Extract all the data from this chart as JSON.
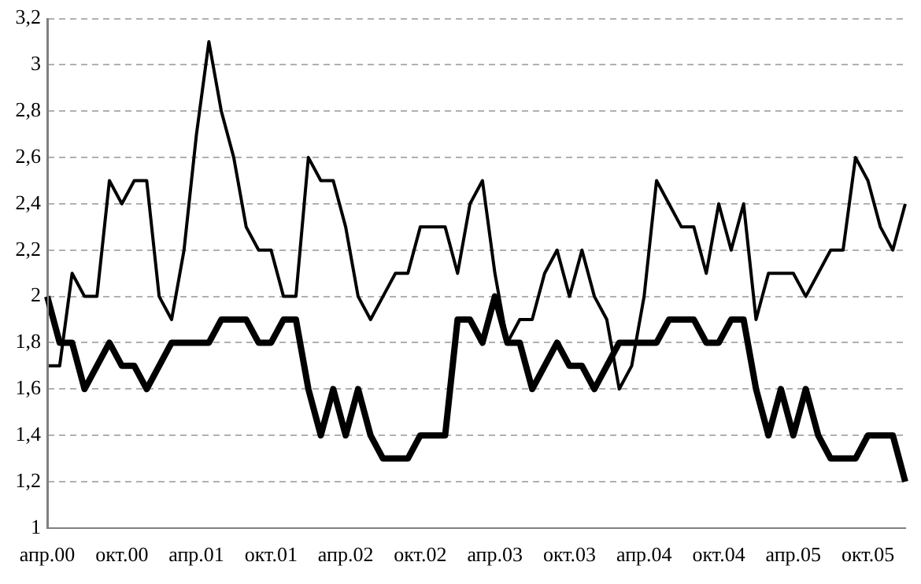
{
  "chart_data": {
    "type": "line",
    "categories": [
      "апр.00",
      null,
      null,
      null,
      null,
      null,
      "окт.00",
      null,
      null,
      null,
      null,
      null,
      "апр.01",
      null,
      null,
      null,
      null,
      null,
      "окт.01",
      null,
      null,
      null,
      null,
      null,
      "апр.02",
      null,
      null,
      null,
      null,
      null,
      "окт.02",
      null,
      null,
      null,
      null,
      null,
      "апр.03",
      null,
      null,
      null,
      null,
      null,
      "окт.03",
      null,
      null,
      null,
      null,
      null,
      "апр.04",
      null,
      null,
      null,
      null,
      null,
      "окт.04",
      null,
      null,
      null,
      null,
      null,
      "апр.05",
      null,
      null,
      null,
      null,
      null,
      "окт.05",
      null,
      null,
      null
    ],
    "series": [
      {
        "color": "#000000",
        "values": [
          1.7,
          1.7,
          2.1,
          2.0,
          2.0,
          2.5,
          2.4,
          2.5,
          2.5,
          2.0,
          1.9,
          2.2,
          2.7,
          3.1,
          2.8,
          2.6,
          2.3,
          2.2,
          2.2,
          2.0,
          2.0,
          2.6,
          2.5,
          2.5,
          2.3,
          2.0,
          1.9,
          2.0,
          2.1,
          2.1,
          2.3,
          2.3,
          2.3,
          2.1,
          2.4,
          2.5,
          2.1,
          1.8,
          1.9,
          1.9,
          2.1,
          2.2,
          2.0,
          2.2,
          2.0,
          1.9,
          1.6,
          1.7,
          2.0,
          2.5,
          2.4,
          2.3,
          2.3,
          2.1,
          2.4,
          2.2,
          2.4,
          1.9,
          2.1,
          2.1,
          2.1,
          2.0,
          2.1,
          2.2,
          2.2,
          2.6,
          2.5,
          2.3,
          2.2,
          2.4
        ]
      },
      {
        "color": "#000000",
        "values": [
          2.0,
          1.8,
          1.8,
          1.6,
          1.7,
          1.8,
          1.7,
          1.7,
          1.6,
          1.7,
          1.8,
          1.8,
          1.8,
          1.8,
          1.9,
          1.9,
          1.9,
          1.8,
          1.8,
          1.9,
          1.9,
          1.6,
          1.4,
          1.6,
          1.4,
          1.6,
          1.4,
          1.3,
          1.3,
          1.3,
          1.4,
          1.4,
          1.4,
          1.9,
          1.9,
          1.8,
          2.0,
          1.8,
          1.8,
          1.6,
          1.7,
          1.8,
          1.7,
          1.7,
          1.6,
          1.7,
          1.8,
          1.8,
          1.8,
          1.8,
          1.9,
          1.9,
          1.9,
          1.8,
          1.8,
          1.9,
          1.9,
          1.6,
          1.4,
          1.6,
          1.4,
          1.6,
          1.4,
          1.3,
          1.3,
          1.3,
          1.4,
          1.4,
          1.4,
          1.2
        ]
      }
    ],
    "ylim": [
      1,
      3.2
    ],
    "yticks": [
      1,
      {
        "value": 1.2,
        "label": "1,2"
      },
      {
        "value": 1.4,
        "label": "1,4"
      },
      {
        "value": 1.6,
        "label": "1,6"
      },
      {
        "value": 1.8,
        "label": "1,8"
      },
      2,
      {
        "value": 2.2,
        "label": "2,2"
      },
      {
        "value": 2.4,
        "label": "2,4"
      },
      {
        "value": 2.6,
        "label": "2,6"
      },
      {
        "value": 2.8,
        "label": "2,8"
      },
      3,
      {
        "value": 3.2,
        "label": "3,2"
      }
    ],
    "grid": "y",
    "legend": false,
    "marker": "none"
  }
}
